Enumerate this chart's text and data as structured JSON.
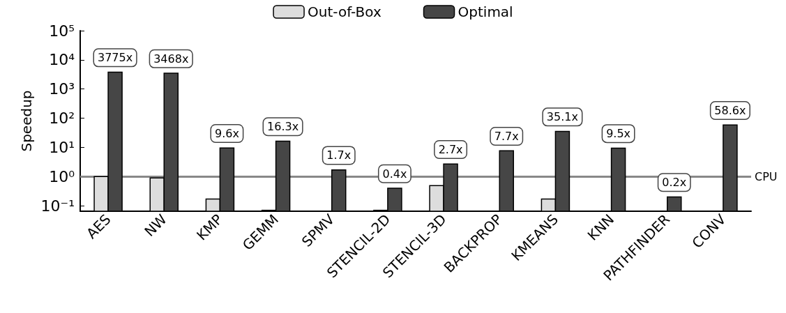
{
  "chart_data": {
    "type": "bar",
    "ylabel": "Speedup",
    "log": true,
    "grid": false,
    "legend": "top",
    "categories": [
      "AES",
      "NW",
      "KMP",
      "GEMM",
      "SPMV",
      "STENCIL-2D",
      "STENCIL-3D",
      "BACKPROP",
      "KMEANS",
      "KNN",
      "PATHFINDER",
      "CONV"
    ],
    "series": [
      {
        "name": "Out-of-Box",
        "color": "#dddddd",
        "values": [
          1.0,
          0.9,
          0.17,
          0.07,
          null,
          0.07,
          0.49,
          null,
          0.17,
          null,
          null,
          null
        ]
      },
      {
        "name": "Optimal",
        "color": "#464646",
        "values": [
          3775,
          3468,
          9.6,
          16.3,
          1.7,
          0.4,
          2.7,
          7.7,
          35.1,
          9.5,
          0.2,
          58.6
        ],
        "value_labels": [
          "3775x",
          "3468x",
          "9.6x",
          "16.3x",
          "1.7x",
          "0.4x",
          "2.7x",
          "7.7x",
          "35.1x",
          "9.5x",
          "0.2x",
          "58.6x"
        ]
      }
    ],
    "ylim": [
      0.065,
      100000
    ],
    "yticks": [
      {
        "value": 0.1,
        "label": "10⁻¹"
      },
      {
        "value": 1,
        "label": "10⁰"
      },
      {
        "value": 10,
        "label": "10¹"
      },
      {
        "value": 100,
        "label": "10²"
      },
      {
        "value": 1000,
        "label": "10³"
      },
      {
        "value": 10000,
        "label": "10⁴"
      },
      {
        "value": 100000,
        "label": "10⁵"
      }
    ],
    "ref_lines": [
      {
        "axis": "y",
        "value": 1,
        "label": "CPU",
        "color": "#888888"
      }
    ]
  }
}
